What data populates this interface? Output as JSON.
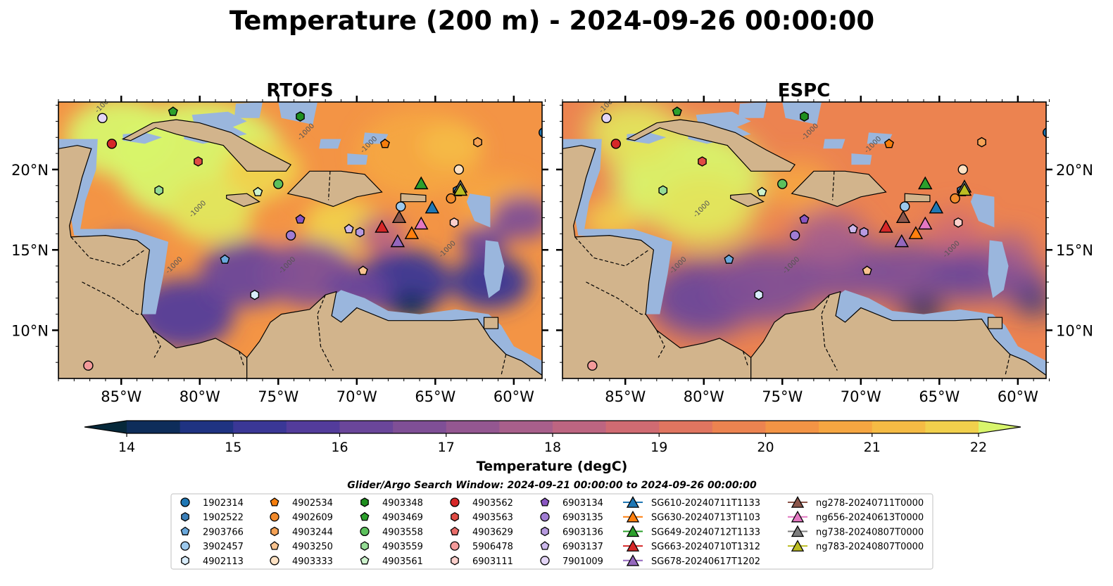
{
  "title": "Temperature (200 m) - 2024-09-26 00:00:00",
  "colors": {
    "land": "#d2b48c",
    "shelf": "#9ab6dd",
    "deep_cold": "#07263a",
    "frame": "#000000",
    "colormap": [
      "#06283a",
      "#0e2d5a",
      "#1f3382",
      "#3a3796",
      "#533c9b",
      "#6a469a",
      "#7f4f96",
      "#945791",
      "#a85f8b",
      "#bd6581",
      "#d06b72",
      "#e07560",
      "#ec8350",
      "#f39445",
      "#f6a641",
      "#f5bb44",
      "#f1d04c",
      "#e3e45c",
      "#d8f56c"
    ]
  },
  "colorbar": {
    "label": "Temperature (degC)",
    "ticks": [
      "14",
      "15",
      "16",
      "17",
      "18",
      "19",
      "20",
      "21",
      "22"
    ],
    "min": 14,
    "max": 22,
    "step": 0.5
  },
  "axes": {
    "x_ticks": [
      "85°W",
      "80°W",
      "75°W",
      "70°W",
      "65°W",
      "60°W"
    ],
    "x_tick_values": [
      -85,
      -80,
      -75,
      -70,
      -65,
      -60
    ],
    "y_ticks": [
      "20°N",
      "15°N",
      "10°N"
    ],
    "y_tick_values": [
      20,
      15,
      10
    ],
    "lon_range": [
      -89,
      -58.2
    ],
    "lat_range": [
      7,
      24.2
    ],
    "contour_label": "-1000"
  },
  "search_window": "Glider/Argo Search Window: 2024-09-21 00:00:00 to 2024-09-26 00:00:00",
  "chart_data": [
    {
      "type": "heatmap",
      "title": "RTOFS",
      "field_description_levels": "14-22 degC",
      "observations": [
        {
          "id": "1902314",
          "lon": -58.1,
          "lat": 22.3
        },
        {
          "id": "1902522",
          "lon": -63.6,
          "lat": 18.7
        },
        {
          "id": "2903766",
          "lon": -78.4,
          "lat": 14.4
        },
        {
          "id": "3902457",
          "lon": -67.2,
          "lat": 17.7
        },
        {
          "id": "4902113",
          "lon": -76.5,
          "lat": 12.2
        },
        {
          "id": "4902534",
          "lon": -68.2,
          "lat": 21.6
        },
        {
          "id": "4902609",
          "lon": -64.0,
          "lat": 18.2
        },
        {
          "id": "4903244",
          "lon": -62.3,
          "lat": 21.7
        },
        {
          "id": "4903250",
          "lon": -69.6,
          "lat": 13.7
        },
        {
          "id": "4903333",
          "lon": -63.5,
          "lat": 20.0
        },
        {
          "id": "4903348",
          "lon": -73.6,
          "lat": 23.3
        },
        {
          "id": "4903469",
          "lon": -81.7,
          "lat": 23.6
        },
        {
          "id": "4903558",
          "lon": -75.0,
          "lat": 19.1
        },
        {
          "id": "4903559",
          "lon": -82.6,
          "lat": 18.7
        },
        {
          "id": "4903561",
          "lon": -76.3,
          "lat": 18.6
        },
        {
          "id": "4903562",
          "lon": -85.6,
          "lat": 21.6
        },
        {
          "id": "4903563",
          "lon": -80.1,
          "lat": 20.5
        },
        {
          "id": "4903629",
          "lon": -63.5,
          "lat": 18.6
        },
        {
          "id": "5906478",
          "lon": -87.1,
          "lat": 7.8
        },
        {
          "id": "6903111",
          "lon": -63.8,
          "lat": 16.7
        },
        {
          "id": "6903134",
          "lon": -73.6,
          "lat": 16.9
        },
        {
          "id": "6903135",
          "lon": -74.2,
          "lat": 15.9
        },
        {
          "id": "6903136",
          "lon": -69.8,
          "lat": 16.1
        },
        {
          "id": "6903137",
          "lon": -70.5,
          "lat": 16.3
        },
        {
          "id": "7901009",
          "lon": -86.2,
          "lat": 23.2
        }
      ],
      "gliders": [
        {
          "id": "SG610-20240711T1133",
          "lon": -65.2,
          "lat": 17.6
        },
        {
          "id": "SG630-20240713T1103",
          "lon": -66.5,
          "lat": 16.0
        },
        {
          "id": "SG649-20240712T1133",
          "lon": -65.9,
          "lat": 19.1
        },
        {
          "id": "SG663-20240710T1312",
          "lon": -68.4,
          "lat": 16.4
        },
        {
          "id": "SG678-20240617T1202",
          "lon": -67.4,
          "lat": 15.5
        },
        {
          "id": "ng278-20240711T0000",
          "lon": -67.3,
          "lat": 17.0
        },
        {
          "id": "ng656-20240613T0000",
          "lon": -65.9,
          "lat": 16.6
        },
        {
          "id": "ng738-20240807T0000",
          "lon": -63.4,
          "lat": 18.9
        },
        {
          "id": "ng783-20240807T0000",
          "lon": -63.4,
          "lat": 18.7
        }
      ]
    },
    {
      "type": "heatmap",
      "title": "ESPC",
      "field_description_levels": "14-22 degC",
      "observations_same_as_first": true,
      "gliders_same_as_first": true
    }
  ],
  "legend": {
    "columns": [
      [
        {
          "id": "1902314",
          "marker": "circle",
          "color": "#1f77b4"
        },
        {
          "id": "1902522",
          "marker": "hexagon",
          "color": "#3b7fb8"
        },
        {
          "id": "2903766",
          "marker": "pentagon",
          "color": "#6aa8dc"
        },
        {
          "id": "3902457",
          "marker": "circle",
          "color": "#9cc8ec"
        },
        {
          "id": "4902113",
          "marker": "hexagon",
          "color": "#d8ecfb"
        }
      ],
      [
        {
          "id": "4902534",
          "marker": "pentagon",
          "color": "#f57d0c"
        },
        {
          "id": "4902609",
          "marker": "circle",
          "color": "#f28a2b"
        },
        {
          "id": "4903244",
          "marker": "hexagon",
          "color": "#f5a255"
        },
        {
          "id": "4903250",
          "marker": "pentagon",
          "color": "#f9c38f"
        },
        {
          "id": "4903333",
          "marker": "circle",
          "color": "#fde2c4"
        }
      ],
      [
        {
          "id": "4903348",
          "marker": "hexagon",
          "color": "#1e8f1e"
        },
        {
          "id": "4903469",
          "marker": "pentagon",
          "color": "#2ca02c"
        },
        {
          "id": "4903558",
          "marker": "circle",
          "color": "#5cc05c"
        },
        {
          "id": "4903559",
          "marker": "hexagon",
          "color": "#95dc95"
        },
        {
          "id": "4903561",
          "marker": "pentagon",
          "color": "#cdf3cd"
        }
      ],
      [
        {
          "id": "4903562",
          "marker": "circle",
          "color": "#d62728"
        },
        {
          "id": "4903563",
          "marker": "hexagon",
          "color": "#e04b44"
        },
        {
          "id": "4903629",
          "marker": "pentagon",
          "color": "#ea6d6a"
        },
        {
          "id": "5906478",
          "marker": "circle",
          "color": "#f39a9a"
        },
        {
          "id": "6903111",
          "marker": "hexagon",
          "color": "#fbd0cc"
        }
      ],
      [
        {
          "id": "6903134",
          "marker": "pentagon",
          "color": "#8a56c2"
        },
        {
          "id": "6903135",
          "marker": "circle",
          "color": "#a07cd3"
        },
        {
          "id": "6903136",
          "marker": "hexagon",
          "color": "#b79ae0"
        },
        {
          "id": "6903137",
          "marker": "pentagon",
          "color": "#ccb8ec"
        },
        {
          "id": "7901009",
          "marker": "circle",
          "color": "#e3d5f6"
        }
      ],
      [
        {
          "id": "SG610-20240711T1133",
          "marker": "triangle",
          "color": "#1f77b4"
        },
        {
          "id": "SG630-20240713T1103",
          "marker": "triangle",
          "color": "#ff7f0e"
        },
        {
          "id": "SG649-20240712T1133",
          "marker": "triangle",
          "color": "#2ca02c"
        },
        {
          "id": "SG663-20240710T1312",
          "marker": "triangle",
          "color": "#d62728"
        },
        {
          "id": "SG678-20240617T1202",
          "marker": "triangle",
          "color": "#9467bd"
        }
      ],
      [
        {
          "id": "ng278-20240711T0000",
          "marker": "triangle",
          "color": "#8c564b"
        },
        {
          "id": "ng656-20240613T0000",
          "marker": "triangle",
          "color": "#e377c2"
        },
        {
          "id": "ng738-20240807T0000",
          "marker": "triangle",
          "color": "#7f7f7f"
        },
        {
          "id": "ng783-20240807T0000",
          "marker": "triangle",
          "color": "#bcbd22"
        }
      ]
    ]
  }
}
